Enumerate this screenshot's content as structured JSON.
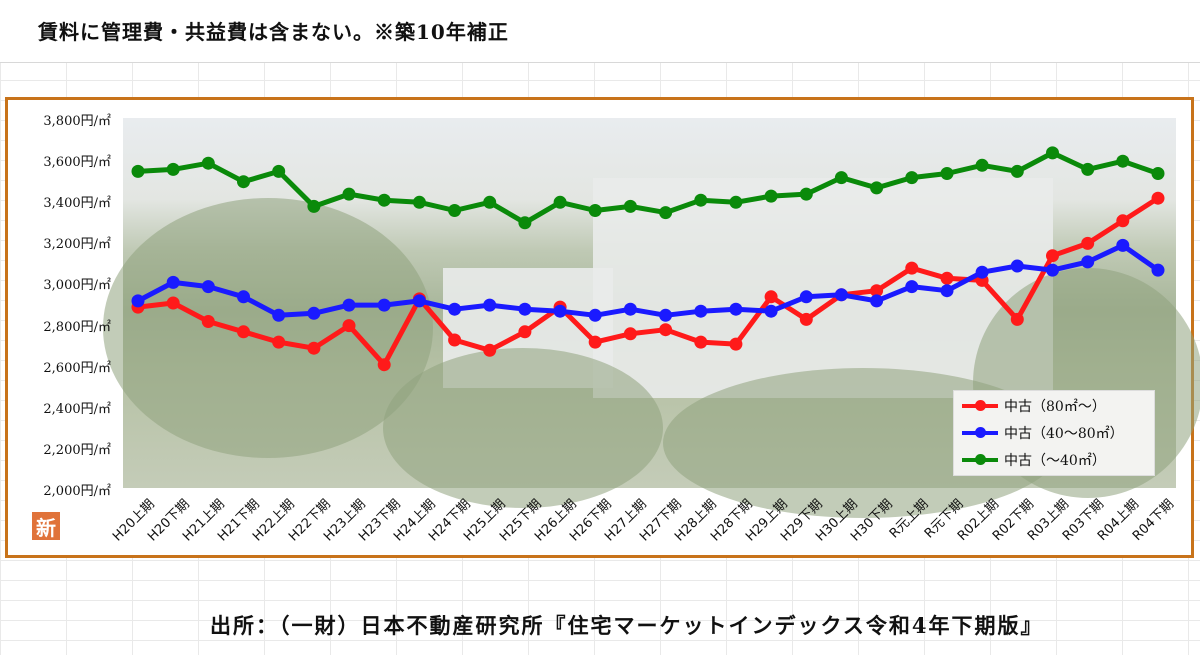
{
  "note": "賃料に管理費・共益費は含まない。※築10年補正",
  "source": "出所：（一財）日本不動産研究所『住宅マーケットインデックス令和4年下期版』",
  "logo_text": "新",
  "chart_data": {
    "type": "line",
    "ylim": [
      2000,
      3800
    ],
    "y_ticks": [
      "3,800円/㎡",
      "3,600円/㎡",
      "3,400円/㎡",
      "3,200円/㎡",
      "3,000円/㎡",
      "2,800円/㎡",
      "2,600円/㎡",
      "2,400円/㎡",
      "2,200円/㎡",
      "2,000円/㎡"
    ],
    "categories": [
      "H20上期",
      "H20下期",
      "H21上期",
      "H21下期",
      "H22上期",
      "H22下期",
      "H23上期",
      "H23下期",
      "H24上期",
      "H24下期",
      "H25上期",
      "H25下期",
      "H26上期",
      "H26下期",
      "H27上期",
      "H27下期",
      "H28上期",
      "H28下期",
      "H29上期",
      "H29下期",
      "H30上期",
      "H30下期",
      "R元上期",
      "R元下期",
      "R02上期",
      "R02下期",
      "R03上期",
      "R03下期",
      "R04上期",
      "R04下期"
    ],
    "legend_position": "bottom-right",
    "series": [
      {
        "name": "中古（80㎡～）",
        "color": "#ff1a1a",
        "values": [
          2880,
          2900,
          2810,
          2760,
          2710,
          2680,
          2790,
          2600,
          2920,
          2720,
          2670,
          2760,
          2880,
          2710,
          2750,
          2770,
          2710,
          2700,
          2930,
          2820,
          2940,
          2960,
          3070,
          3020,
          3010,
          2820,
          3130,
          3190,
          3300,
          3410
        ]
      },
      {
        "name": "中古（40～80㎡）",
        "color": "#1a1aff",
        "values": [
          2910,
          3000,
          2980,
          2930,
          2840,
          2850,
          2890,
          2890,
          2910,
          2870,
          2890,
          2870,
          2860,
          2840,
          2870,
          2840,
          2860,
          2870,
          2860,
          2930,
          2940,
          2910,
          2980,
          2960,
          3050,
          3080,
          3060,
          3100,
          3180,
          3060
        ]
      },
      {
        "name": "中古（～40㎡）",
        "color": "#0a8a0a",
        "values": [
          3540,
          3550,
          3580,
          3490,
          3540,
          3370,
          3430,
          3400,
          3390,
          3350,
          3390,
          3290,
          3390,
          3350,
          3370,
          3340,
          3400,
          3390,
          3420,
          3430,
          3510,
          3460,
          3510,
          3530,
          3570,
          3540,
          3630,
          3550,
          3590,
          3530
        ]
      }
    ]
  }
}
